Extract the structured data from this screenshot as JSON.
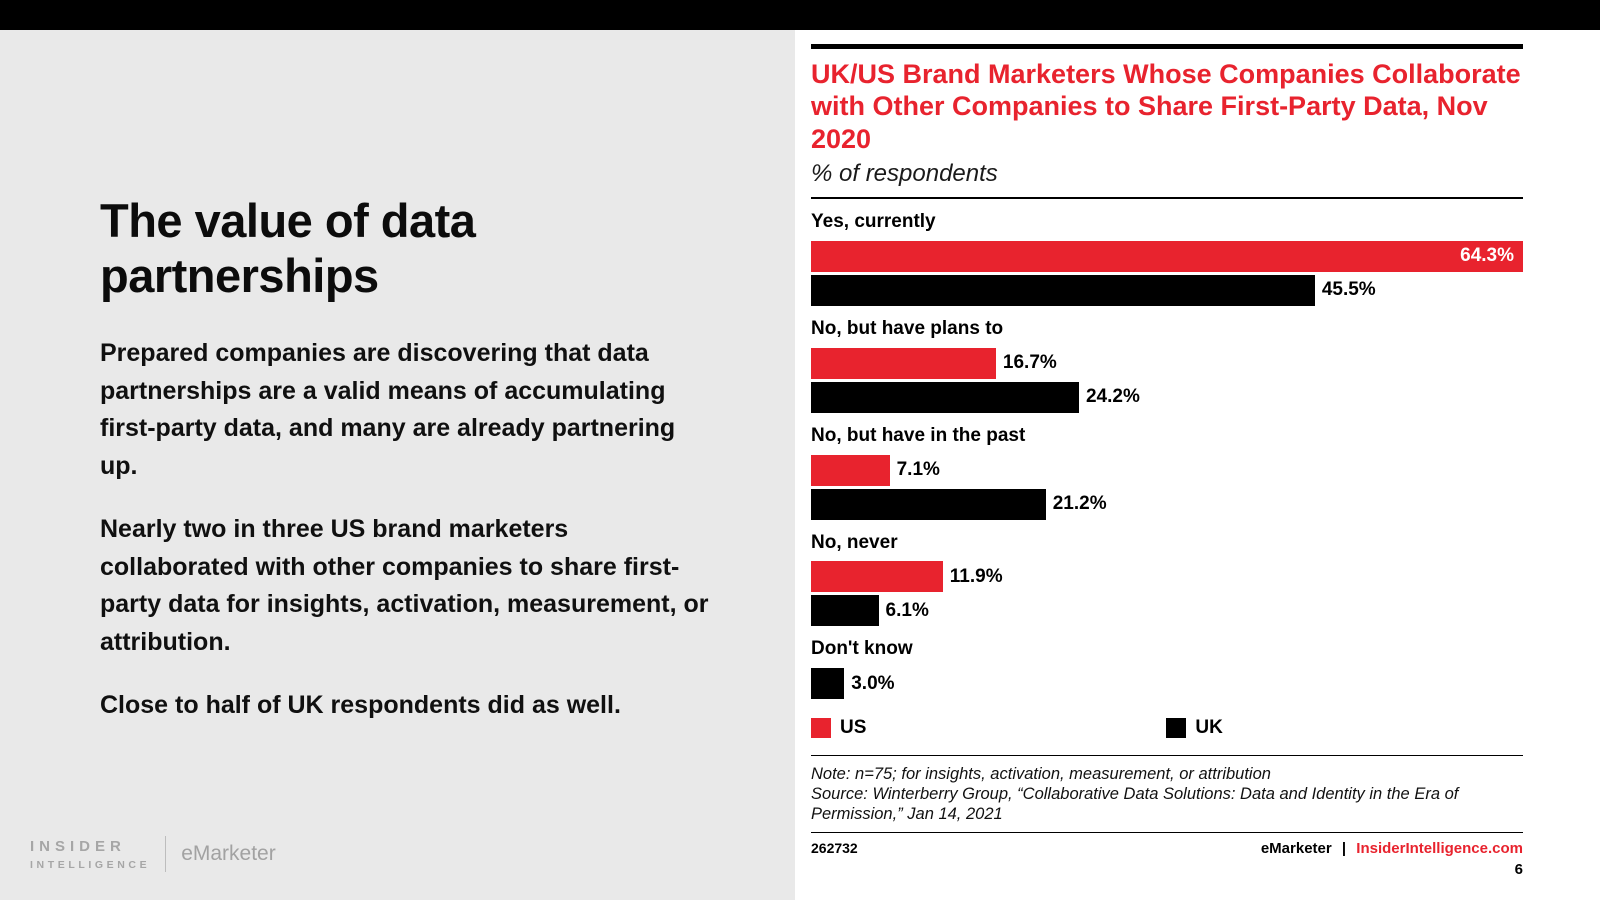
{
  "left": {
    "title": "The value of data partnerships",
    "paragraphs": [
      "Prepared companies are discovering that data partnerships are a valid means of accumulating first-party data, and many are already partnering up.",
      "Nearly two in three US brand marketers collaborated with other companies to share first-party data for insights, activation, measurement, or attribution.",
      "Close to half of UK respondents did as well."
    ]
  },
  "brand": {
    "insider_line1": "INSIDER",
    "insider_line2": "INTELLIGENCE",
    "emarketer": "eMarketer"
  },
  "chart_data": {
    "type": "bar",
    "orientation": "horizontal",
    "title": "UK/US Brand Marketers Whose Companies Collaborate with Other Companies to Share First-Party Data, Nov 2020",
    "subtitle": "% of respondents",
    "categories": [
      "Yes, currently",
      "No, but have plans to",
      "No, but have in the past",
      "No, never",
      "Don't know"
    ],
    "series": [
      {
        "name": "US",
        "color": "#e8232e",
        "values": [
          64.3,
          16.7,
          7.1,
          11.9,
          null
        ]
      },
      {
        "name": "UK",
        "color": "#000000",
        "values": [
          45.5,
          24.2,
          21.2,
          6.1,
          3.0
        ]
      }
    ],
    "xmax": 64.3,
    "value_suffix": "%",
    "legend_position": "bottom",
    "grid": false,
    "note": "Note: n=75; for insights, activation, measurement, or attribution",
    "source": "Source: Winterberry Group, “Collaborative Data Solutions: Data and Identity in the Era of Permission,” Jan 14, 2021"
  },
  "footer": {
    "chart_id": "262732",
    "brand": "eMarketer",
    "separator": "|",
    "site": "InsiderIntelligence.com",
    "page": "6"
  },
  "colors": {
    "accent_red": "#e8232e",
    "bar_black": "#000000",
    "left_bg": "#e9e9e9",
    "logo_gray": "#a6a6a6"
  }
}
